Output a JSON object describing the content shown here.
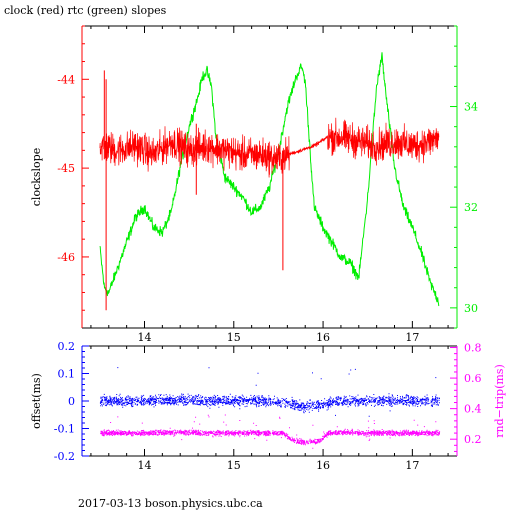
{
  "title": "clock (red) rtc (green) slopes",
  "footer": "2017-03-13  boson.physics.ubc.ca",
  "colors": {
    "clock": "#ff0000",
    "rtc": "#00ee00",
    "offset": "#0000ff",
    "rndtrip": "#ff00ff",
    "frame": "#000000"
  },
  "chart_data": [
    {
      "type": "line",
      "title": "clock (red) rtc (green) slopes",
      "xlim": [
        13.3,
        17.5
      ],
      "x_ticks": [
        "14",
        "15",
        "16",
        "17"
      ],
      "ylabel": "clockslope",
      "ylim": [
        -46.8,
        -43.4
      ],
      "y_ticks": [
        "-44",
        "-45",
        "-46"
      ],
      "y2lim": [
        29.6,
        35.6
      ],
      "y2_ticks": [
        "34",
        "32",
        "30"
      ],
      "grid": false,
      "series": [
        {
          "name": "clock",
          "axis": "left",
          "x": [
            13.5,
            13.7,
            13.9,
            14.1,
            14.3,
            14.5,
            14.7,
            14.9,
            15.1,
            15.3,
            15.5,
            15.6,
            15.75,
            15.9,
            16.05,
            16.2,
            16.4,
            16.6,
            16.8,
            17.0,
            17.2,
            17.3
          ],
          "y": [
            -44.75,
            -44.8,
            -44.75,
            -44.85,
            -44.7,
            -44.8,
            -44.75,
            -44.8,
            -44.85,
            -44.85,
            -44.9,
            -44.85,
            -44.8,
            -44.75,
            -44.65,
            -44.65,
            -44.7,
            -44.75,
            -44.7,
            -44.75,
            -44.7,
            -44.65
          ]
        },
        {
          "name": "rtc",
          "axis": "right",
          "x": [
            13.5,
            13.55,
            13.6,
            13.7,
            13.8,
            13.9,
            14.0,
            14.1,
            14.2,
            14.3,
            14.4,
            14.5,
            14.6,
            14.65,
            14.7,
            14.75,
            14.8,
            14.9,
            15.0,
            15.1,
            15.2,
            15.3,
            15.4,
            15.5,
            15.6,
            15.7,
            15.76,
            15.8,
            15.9,
            16.0,
            16.1,
            16.2,
            16.3,
            16.4,
            16.5,
            16.6,
            16.66,
            16.7,
            16.8,
            16.9,
            17.0,
            17.1,
            17.2,
            17.3
          ],
          "y": [
            31.2,
            30.4,
            30.3,
            30.8,
            31.3,
            31.8,
            32.0,
            31.6,
            31.5,
            31.9,
            32.8,
            33.6,
            34.2,
            34.6,
            34.7,
            34.4,
            33.4,
            32.6,
            32.4,
            32.2,
            31.9,
            32.0,
            32.4,
            33.1,
            34.0,
            34.6,
            34.8,
            34.5,
            32.0,
            31.6,
            31.3,
            31.0,
            30.9,
            30.6,
            32.2,
            34.4,
            35.0,
            34.3,
            32.8,
            32.0,
            31.6,
            31.1,
            30.5,
            30.1
          ]
        }
      ]
    },
    {
      "type": "scatter",
      "xlim": [
        13.3,
        17.5
      ],
      "x_ticks": [
        "14",
        "15",
        "16",
        "17"
      ],
      "ylabel": "offset(ms)",
      "ylim": [
        -0.2,
        0.2
      ],
      "y_ticks": [
        "0.2",
        "0.1",
        "0",
        "-0.1",
        "-0.2"
      ],
      "y2label": "rnd−trip(ms)",
      "y2lim": [
        0.09,
        0.81
      ],
      "y2_ticks": [
        "0.8",
        "0.6",
        "0.4",
        "0.2"
      ],
      "grid": false,
      "series": [
        {
          "name": "offset",
          "axis": "left",
          "x": [
            13.5,
            13.8,
            14.1,
            14.4,
            14.7,
            15.0,
            15.3,
            15.55,
            15.75,
            15.95,
            16.15,
            16.4,
            16.7,
            17.0,
            17.3
          ],
          "y": [
            0.0,
            0.0,
            0.0,
            0.005,
            0.0,
            0.0,
            0.0,
            -0.005,
            -0.02,
            -0.015,
            0.0,
            0.0,
            0.0,
            0.0,
            0.0
          ]
        },
        {
          "name": "rnd-trip",
          "axis": "right",
          "x": [
            13.5,
            13.8,
            14.1,
            14.4,
            14.7,
            15.0,
            15.3,
            15.55,
            15.65,
            15.8,
            15.95,
            16.05,
            16.2,
            16.5,
            16.8,
            17.1,
            17.3
          ],
          "y": [
            0.24,
            0.24,
            0.24,
            0.245,
            0.24,
            0.24,
            0.24,
            0.24,
            0.19,
            0.18,
            0.185,
            0.24,
            0.245,
            0.24,
            0.24,
            0.24,
            0.24
          ]
        }
      ]
    }
  ]
}
